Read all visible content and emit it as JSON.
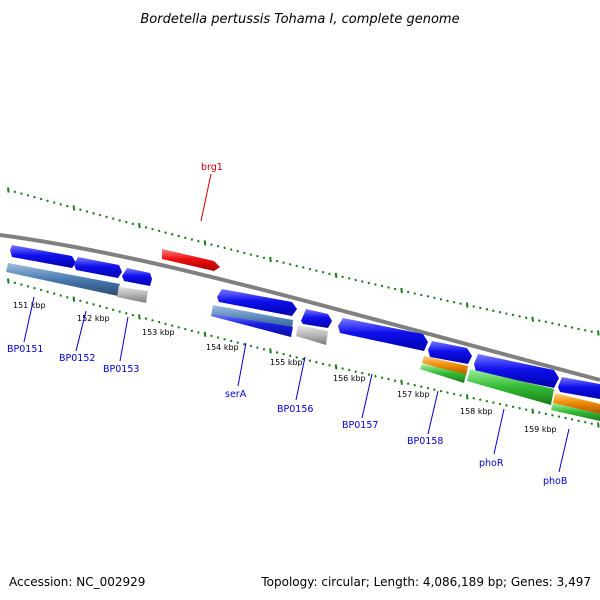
{
  "title": "Bordetella pertussis Tohama I, complete genome",
  "footer": {
    "accession": "Accession: NC_002929",
    "topology": "Topology: circular; Length: 4,086,189 bp; Genes: 3,497"
  },
  "scale_labels": [
    "151 kbp",
    "152 kbp",
    "153 kbp",
    "154 kbp",
    "155 kbp",
    "156 kbp",
    "157 kbp",
    "158 kbp",
    "159 kbp"
  ],
  "gene_labels": [
    "BP0151",
    "BP0152",
    "BP0153",
    "serA",
    "BP0156",
    "BP0157",
    "BP0158",
    "phoR",
    "phoB",
    "brg1"
  ],
  "colors": {
    "backbone": "#808080",
    "tick_green": "#1a7a1a",
    "gene_blue": "#0000ee",
    "gene_red": "#ee0000",
    "feature_steelblue": "#4a7ab0",
    "feature_gray": "#b0b0b0",
    "feature_green": "#33bb33",
    "feature_orange": "#ee8800",
    "label_blue": "#0000cc",
    "label_red": "#cc0000"
  }
}
